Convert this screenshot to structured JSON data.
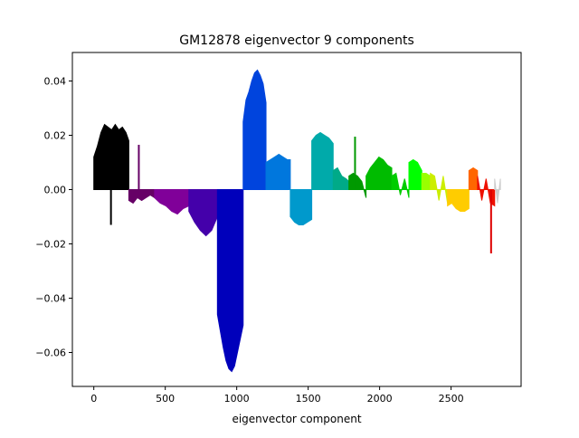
{
  "chart_data": {
    "type": "bar",
    "title": "GM12878 eigenvector 9 components",
    "xlabel": "eigenvector component",
    "ylabel": "",
    "xlim": [
      -150,
      2990
    ],
    "ylim": [
      -0.0725,
      0.0505
    ],
    "x_ticks": [
      0,
      500,
      1000,
      1500,
      2000,
      2500
    ],
    "x_tick_labels": [
      "0",
      "500",
      "1000",
      "1500",
      "2000",
      "2500"
    ],
    "y_ticks": [
      0.04,
      0.02,
      0.0,
      -0.02,
      -0.04,
      -0.06
    ],
    "y_tick_labels": [
      "0.04",
      "0.02",
      "0.00",
      "−0.02",
      "−0.04",
      "−0.06"
    ],
    "grid": false,
    "series": [
      {
        "color": "#000000",
        "x": [
          0,
          25,
          50,
          75,
          100,
          125,
          150,
          175,
          200,
          225,
          245
        ],
        "values": [
          0.012,
          0.016,
          0.021,
          0.024,
          0.023,
          0.022,
          0.024,
          0.022,
          0.023,
          0.021,
          0.018
        ]
      },
      {
        "color": "#000000",
        "x": [
          120
        ],
        "values": [
          -0.013
        ]
      },
      {
        "color": "#660066",
        "x": [
          245,
          275,
          305,
          335,
          365,
          395,
          425
        ],
        "values": [
          -0.004,
          -0.005,
          -0.003,
          -0.004,
          -0.003,
          -0.002,
          -0.003
        ]
      },
      {
        "color": "#660066",
        "x": [
          315
        ],
        "values": [
          0.0165
        ]
      },
      {
        "color": "#800099",
        "x": [
          425,
          465,
          505,
          545,
          585,
          625,
          665
        ],
        "values": [
          -0.003,
          -0.005,
          -0.006,
          -0.008,
          -0.009,
          -0.007,
          -0.006
        ]
      },
      {
        "color": "#4400aa",
        "x": [
          665,
          705,
          745,
          785,
          825,
          865
        ],
        "values": [
          -0.008,
          -0.012,
          -0.015,
          -0.017,
          -0.015,
          -0.01
        ]
      },
      {
        "color": "#0000bb",
        "x": [
          865,
          885,
          905,
          925,
          945,
          965,
          985,
          1005,
          1025,
          1045
        ],
        "values": [
          -0.046,
          -0.052,
          -0.058,
          -0.063,
          -0.066,
          -0.067,
          -0.065,
          -0.06,
          -0.055,
          -0.05
        ]
      },
      {
        "color": "#0044dd",
        "x": [
          1045,
          1065,
          1085,
          1105,
          1125,
          1145,
          1165,
          1185,
          1205
        ],
        "values": [
          0.025,
          0.033,
          0.036,
          0.04,
          0.043,
          0.044,
          0.042,
          0.039,
          0.032
        ]
      },
      {
        "color": "#0077dd",
        "x": [
          1205,
          1235,
          1265,
          1295,
          1325,
          1355,
          1375
        ],
        "values": [
          0.01,
          0.011,
          0.012,
          0.013,
          0.012,
          0.011,
          0.011
        ]
      },
      {
        "color": "#0099cc",
        "x": [
          1375,
          1405,
          1435,
          1465,
          1495,
          1525
        ],
        "values": [
          -0.01,
          -0.012,
          -0.013,
          -0.013,
          -0.012,
          -0.011
        ]
      },
      {
        "color": "#00aaaa",
        "x": [
          1525,
          1555,
          1585,
          1615,
          1645,
          1675
        ],
        "values": [
          0.018,
          0.02,
          0.021,
          0.02,
          0.019,
          0.017
        ]
      },
      {
        "color": "#00aa88",
        "x": [
          1675,
          1705,
          1735,
          1765,
          1785
        ],
        "values": [
          0.007,
          0.008,
          0.005,
          0.004,
          0.003
        ]
      },
      {
        "color": "#009900",
        "x": [
          1785,
          1815,
          1845,
          1875,
          1905
        ],
        "values": [
          0.005,
          0.006,
          0.005,
          0.003,
          -0.003
        ]
      },
      {
        "color": "#009900",
        "x": [
          1828
        ],
        "values": [
          0.0195
        ]
      },
      {
        "color": "#00bb00",
        "x": [
          1905,
          1935,
          1965,
          1995,
          2025,
          2055,
          2085
        ],
        "values": [
          0.005,
          0.008,
          0.01,
          0.012,
          0.011,
          0.009,
          0.008
        ]
      },
      {
        "color": "#00cc00",
        "x": [
          2085,
          2115,
          2145,
          2175,
          2205
        ],
        "values": [
          0.005,
          0.006,
          -0.002,
          0.004,
          -0.003
        ]
      },
      {
        "color": "#00ff00",
        "x": [
          2205,
          2235,
          2265,
          2295
        ],
        "values": [
          0.01,
          0.011,
          0.01,
          0.007
        ]
      },
      {
        "color": "#99ff00",
        "x": [
          2295,
          2325,
          2355
        ],
        "values": [
          0.006,
          0.006,
          0.005
        ]
      },
      {
        "color": "#ccee00",
        "x": [
          2355,
          2385,
          2415,
          2445,
          2475
        ],
        "values": [
          0.006,
          0.005,
          -0.004,
          0.005,
          -0.005
        ]
      },
      {
        "color": "#ffcc00",
        "x": [
          2475,
          2505,
          2535,
          2565,
          2595,
          2625
        ],
        "values": [
          -0.006,
          -0.005,
          -0.007,
          -0.008,
          -0.008,
          -0.007
        ]
      },
      {
        "color": "#ff6600",
        "x": [
          2625,
          2655,
          2685
        ],
        "values": [
          0.007,
          0.008,
          0.007
        ]
      },
      {
        "color": "#ee1100",
        "x": [
          2685,
          2715,
          2745,
          2775,
          2805
        ],
        "values": [
          0.005,
          -0.004,
          0.004,
          -0.005,
          -0.006
        ]
      },
      {
        "color": "#dd0000",
        "x": [
          2780
        ],
        "values": [
          -0.0235
        ]
      },
      {
        "color": "#cccccc",
        "x": [
          2805,
          2825,
          2845
        ],
        "values": [
          0.004,
          -0.005,
          0.004
        ]
      }
    ]
  }
}
